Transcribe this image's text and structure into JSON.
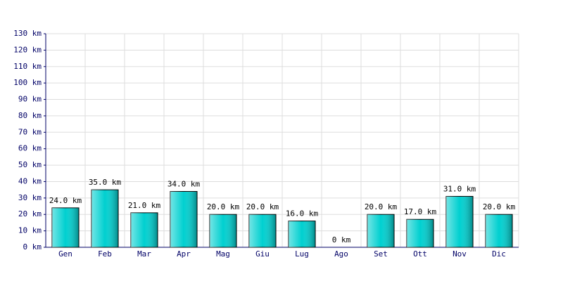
{
  "chart_data": {
    "type": "bar",
    "categories": [
      "Gen",
      "Feb",
      "Mar",
      "Apr",
      "Mag",
      "Giu",
      "Lug",
      "Ago",
      "Set",
      "Ott",
      "Nov",
      "Dic"
    ],
    "values": [
      24,
      35,
      21,
      34,
      20,
      20,
      16,
      0,
      20,
      17,
      31,
      20
    ],
    "value_labels": [
      "24.0 km",
      "35.0 km",
      "21.0 km",
      "34.0 km",
      "20.0 km",
      "20.0 km",
      "16.0 km",
      "0 km",
      "20.0 km",
      "17.0 km",
      "31.0 km",
      "20.0 km"
    ],
    "color": "#00d0d0",
    "ylim": [
      0,
      130
    ],
    "yticks": [
      {
        "value": 0,
        "label": "0 km"
      },
      {
        "value": 10,
        "label": "10 km"
      },
      {
        "value": 20,
        "label": "20 km"
      },
      {
        "value": 30,
        "label": "30 km"
      },
      {
        "value": 40,
        "label": "40 km"
      },
      {
        "value": 50,
        "label": "50 km"
      },
      {
        "value": 60,
        "label": "60 km"
      },
      {
        "value": 70,
        "label": "70 km"
      },
      {
        "value": 80,
        "label": "80 km"
      },
      {
        "value": 90,
        "label": "90 km"
      },
      {
        "value": 100,
        "label": "100 km"
      },
      {
        "value": 110,
        "label": "110 km"
      },
      {
        "value": 120,
        "label": "120 km"
      },
      {
        "value": 130,
        "label": "130 km"
      }
    ],
    "grid": true
  }
}
